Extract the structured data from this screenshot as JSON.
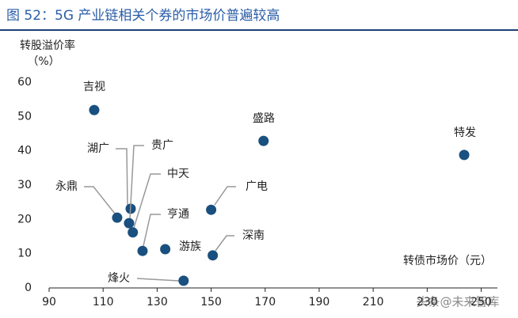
{
  "chart_data": {
    "type": "scatter",
    "title": "图 52：5G 产业链相关个券的市场价普遍较高",
    "y_label": "转股溢价率",
    "y_unit": "（%）",
    "x_label": "转债市场价（元）",
    "watermark": "头条@未来智库",
    "color": "#19507f",
    "labels": [
      "吉视",
      "盛路",
      "特发",
      "广电",
      "永鼎",
      "湖广",
      "贵广",
      "中天",
      "亨通",
      "游族",
      "深南",
      "烽火"
    ],
    "x": [
      106.7,
      169.4,
      243.7,
      150.0,
      115.2,
      120.2,
      119.6,
      121.0,
      124.6,
      133.0,
      150.6,
      139.8
    ],
    "values": [
      51.9,
      42.9,
      38.8,
      22.8,
      20.5,
      23.1,
      18.9,
      16.2,
      10.8,
      11.3,
      9.5,
      2.1
    ],
    "xlim": [
      90,
      256
    ],
    "ylim": [
      0,
      60
    ],
    "xticks": [
      90,
      110,
      130,
      150,
      170,
      190,
      210,
      230,
      250
    ],
    "yticks": [
      0,
      10,
      20,
      30,
      40,
      50,
      60
    ]
  }
}
